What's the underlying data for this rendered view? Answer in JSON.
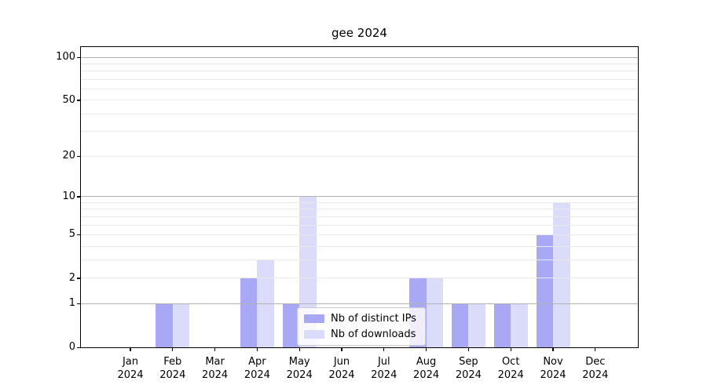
{
  "chart_data": {
    "type": "bar",
    "title": "gee 2024",
    "categories": [
      "Jan 2024",
      "Feb 2024",
      "Mar 2024",
      "Apr 2024",
      "May 2024",
      "Jun 2024",
      "Jul 2024",
      "Aug 2024",
      "Sep 2024",
      "Oct 2024",
      "Nov 2024",
      "Dec 2024"
    ],
    "xtick_month_line": [
      "Jan",
      "Feb",
      "Mar",
      "Apr",
      "May",
      "Jun",
      "Jul",
      "Aug",
      "Sep",
      "Oct",
      "Nov",
      "Dec"
    ],
    "xtick_year_line": "2024",
    "series": [
      {
        "name": "Nb of distinct IPs",
        "color": "#a8a8f5",
        "values": [
          0,
          1,
          0,
          2,
          1,
          0,
          0,
          2,
          1,
          1,
          5,
          0
        ]
      },
      {
        "name": "Nb of downloads",
        "color": "#dbdbfa",
        "values": [
          0,
          1,
          0,
          3,
          10,
          0,
          0,
          2,
          1,
          1,
          9,
          0
        ]
      }
    ],
    "yscale": "log10(value+1)",
    "ylim": [
      0,
      118
    ],
    "yticks": [
      0,
      1,
      2,
      5,
      10,
      20,
      50,
      100
    ],
    "grid": {
      "major_values": [
        1,
        10,
        100
      ],
      "minor_values": [
        2,
        3,
        4,
        5,
        6,
        7,
        8,
        9,
        20,
        30,
        40,
        50,
        60,
        70,
        80,
        90
      ],
      "major_color": "#b2b2b2",
      "minor_color": "#e9e9e9"
    },
    "legend_position": "lower center",
    "background_color": "#ffffff",
    "spine_color": "#000000",
    "text_color": "#000000"
  },
  "legend": {
    "items": [
      {
        "label": "Nb of distinct IPs",
        "color": "#a8a8f5"
      },
      {
        "label": "Nb of downloads",
        "color": "#dbdbfa"
      }
    ]
  }
}
